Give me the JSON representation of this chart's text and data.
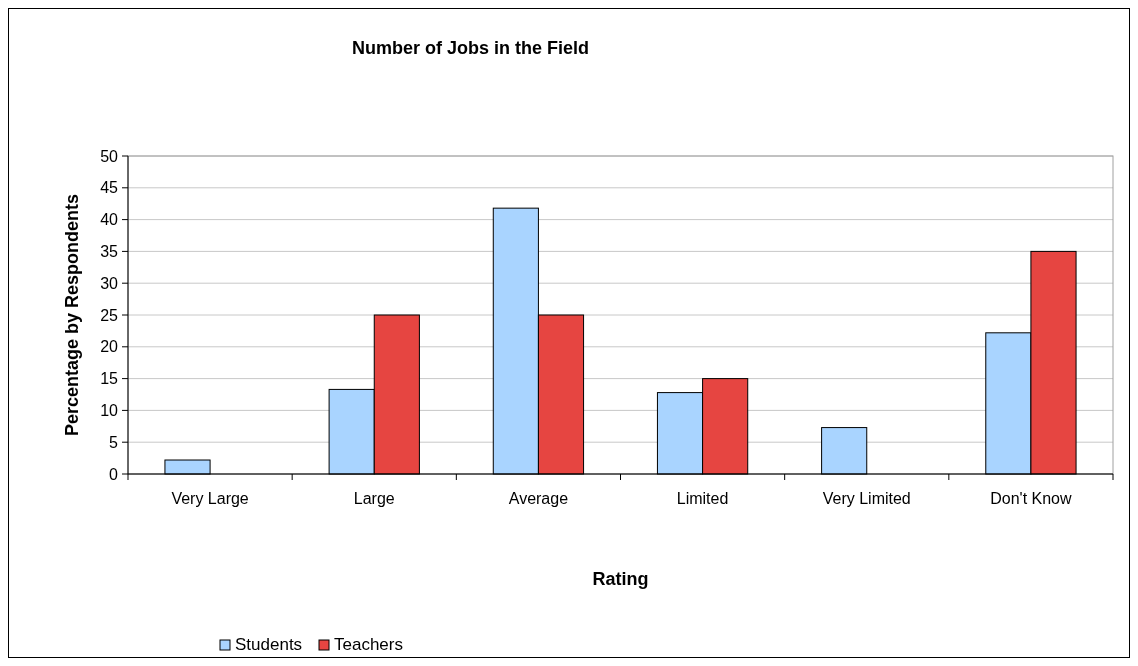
{
  "chart_data": {
    "type": "bar",
    "title": "Number of Jobs in the Field",
    "xlabel": "Rating",
    "ylabel": "Percentage by Respondents",
    "categories": [
      "Very Large",
      "Large",
      "Average",
      "Limited",
      "Very Limited",
      "Don't Know"
    ],
    "series": [
      {
        "name": "Students",
        "color": "#a9d4ff",
        "values": [
          2.2,
          13.3,
          41.8,
          12.8,
          7.3,
          22.2
        ]
      },
      {
        "name": "Teachers",
        "color": "#e64541",
        "values": [
          0,
          25,
          25,
          15,
          0,
          35
        ]
      }
    ],
    "ylim": [
      0,
      50
    ],
    "yticks": [
      0,
      5,
      10,
      15,
      20,
      25,
      30,
      35,
      40,
      45,
      50
    ],
    "grid": "y",
    "legend": "bottom"
  }
}
